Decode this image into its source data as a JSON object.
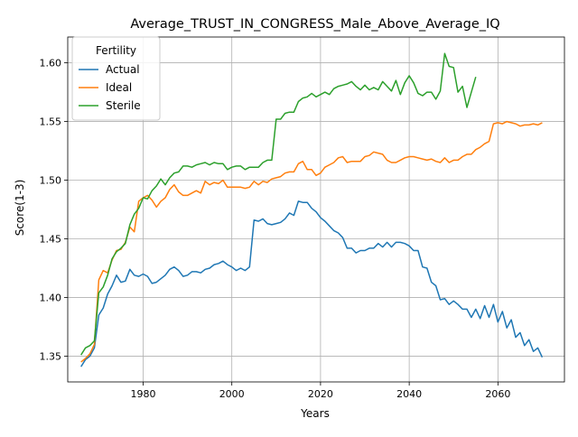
{
  "chart_data": {
    "type": "line",
    "title": "Average_TRUST_IN_CONGRESS_Male_Above_Average_IQ",
    "xlabel": "Years",
    "ylabel": "Score(1-3)",
    "xlim": [
      1963,
      2075
    ],
    "ylim": [
      1.328,
      1.622
    ],
    "xticks": [
      1980,
      2000,
      2020,
      2040,
      2060
    ],
    "yticks": [
      1.35,
      1.4,
      1.45,
      1.5,
      1.55,
      1.6
    ],
    "grid": true,
    "legend": {
      "title": "Fertility",
      "placement": "top-left"
    },
    "series": [
      {
        "name": "Actual",
        "color": "#1f77b4",
        "x": [
          1966,
          1967,
          1968,
          1969,
          1970,
          1971,
          1972,
          1973,
          1974,
          1975,
          1976,
          1977,
          1978,
          1979,
          1980,
          1981,
          1982,
          1983,
          1984,
          1985,
          1986,
          1987,
          1988,
          1989,
          1990,
          1991,
          1992,
          1993,
          1994,
          1995,
          1996,
          1997,
          1998,
          1999,
          2000,
          2001,
          2002,
          2003,
          2004,
          2005,
          2006,
          2007,
          2008,
          2009,
          2010,
          2011,
          2012,
          2013,
          2014,
          2015,
          2016,
          2017,
          2018,
          2019,
          2020,
          2021,
          2022,
          2023,
          2024,
          2025,
          2026,
          2027,
          2028,
          2029,
          2030,
          2031,
          2032,
          2033,
          2034,
          2035,
          2036,
          2037,
          2038,
          2039,
          2040,
          2041,
          2042,
          2043,
          2044,
          2045,
          2046,
          2047,
          2048,
          2049,
          2050,
          2051,
          2052,
          2053,
          2054,
          2055,
          2056,
          2057,
          2058,
          2059,
          2060,
          2061,
          2062,
          2063,
          2064,
          2065,
          2066,
          2067,
          2068,
          2069,
          2070
        ],
        "values": [
          1.341,
          1.347,
          1.35,
          1.357,
          1.385,
          1.391,
          1.403,
          1.41,
          1.419,
          1.413,
          1.414,
          1.424,
          1.419,
          1.418,
          1.42,
          1.418,
          1.412,
          1.413,
          1.416,
          1.419,
          1.424,
          1.426,
          1.423,
          1.418,
          1.419,
          1.422,
          1.422,
          1.421,
          1.424,
          1.425,
          1.428,
          1.429,
          1.431,
          1.428,
          1.426,
          1.423,
          1.425,
          1.423,
          1.426,
          1.466,
          1.465,
          1.467,
          1.463,
          1.462,
          1.463,
          1.464,
          1.467,
          1.472,
          1.47,
          1.482,
          1.481,
          1.481,
          1.476,
          1.473,
          1.468,
          1.465,
          1.461,
          1.457,
          1.455,
          1.451,
          1.442,
          1.442,
          1.438,
          1.44,
          1.44,
          1.442,
          1.442,
          1.446,
          1.443,
          1.447,
          1.443,
          1.447,
          1.447,
          1.446,
          1.444,
          1.44,
          1.44,
          1.426,
          1.425,
          1.413,
          1.41,
          1.398,
          1.399,
          1.394,
          1.397,
          1.394,
          1.39,
          1.39,
          1.383,
          1.39,
          1.382,
          1.393,
          1.383,
          1.394,
          1.379,
          1.388,
          1.374,
          1.381,
          1.366,
          1.37,
          1.359,
          1.364,
          1.354,
          1.357,
          1.349
        ]
      },
      {
        "name": "Ideal",
        "color": "#ff7f0e",
        "x": [
          1966,
          1967,
          1968,
          1969,
          1970,
          1971,
          1972,
          1973,
          1974,
          1975,
          1976,
          1977,
          1978,
          1979,
          1980,
          1981,
          1982,
          1983,
          1984,
          1985,
          1986,
          1987,
          1988,
          1989,
          1990,
          1991,
          1992,
          1993,
          1994,
          1995,
          1996,
          1997,
          1998,
          1999,
          2000,
          2001,
          2002,
          2003,
          2004,
          2005,
          2006,
          2007,
          2008,
          2009,
          2010,
          2011,
          2012,
          2013,
          2014,
          2015,
          2016,
          2017,
          2018,
          2019,
          2020,
          2021,
          2022,
          2023,
          2024,
          2025,
          2026,
          2027,
          2028,
          2029,
          2030,
          2031,
          2032,
          2033,
          2034,
          2035,
          2036,
          2037,
          2038,
          2039,
          2040,
          2041,
          2042,
          2043,
          2044,
          2045,
          2046,
          2047,
          2048,
          2049,
          2050,
          2051,
          2052,
          2053,
          2054,
          2055,
          2056,
          2057,
          2058,
          2059,
          2060,
          2061,
          2062,
          2063,
          2064,
          2065,
          2066,
          2067,
          2068,
          2069,
          2070
        ],
        "values": [
          1.345,
          1.348,
          1.352,
          1.36,
          1.415,
          1.423,
          1.421,
          1.432,
          1.44,
          1.441,
          1.447,
          1.46,
          1.456,
          1.482,
          1.485,
          1.487,
          1.483,
          1.477,
          1.482,
          1.485,
          1.492,
          1.496,
          1.49,
          1.487,
          1.487,
          1.489,
          1.491,
          1.489,
          1.499,
          1.496,
          1.498,
          1.497,
          1.5,
          1.494,
          1.494,
          1.494,
          1.494,
          1.493,
          1.494,
          1.499,
          1.496,
          1.499,
          1.498,
          1.501,
          1.502,
          1.503,
          1.506,
          1.507,
          1.507,
          1.514,
          1.516,
          1.509,
          1.509,
          1.504,
          1.506,
          1.511,
          1.513,
          1.515,
          1.519,
          1.52,
          1.515,
          1.516,
          1.516,
          1.516,
          1.52,
          1.521,
          1.524,
          1.523,
          1.522,
          1.517,
          1.515,
          1.515,
          1.517,
          1.519,
          1.52,
          1.52,
          1.519,
          1.518,
          1.517,
          1.518,
          1.516,
          1.515,
          1.519,
          1.515,
          1.517,
          1.517,
          1.52,
          1.522,
          1.522,
          1.526,
          1.528,
          1.531,
          1.533,
          1.548,
          1.549,
          1.548,
          1.55,
          1.549,
          1.548,
          1.546,
          1.547,
          1.547,
          1.548,
          1.547,
          1.549
        ]
      },
      {
        "name": "Sterile",
        "color": "#2ca02c",
        "x": [
          1966,
          1967,
          1968,
          1969,
          1970,
          1971,
          1972,
          1973,
          1974,
          1975,
          1976,
          1977,
          1978,
          1979,
          1980,
          1981,
          1982,
          1983,
          1984,
          1985,
          1986,
          1987,
          1988,
          1989,
          1990,
          1991,
          1992,
          1993,
          1994,
          1995,
          1996,
          1997,
          1998,
          1999,
          2000,
          2001,
          2002,
          2003,
          2004,
          2005,
          2006,
          2007,
          2008,
          2009,
          2010,
          2011,
          2012,
          2013,
          2014,
          2015,
          2016,
          2017,
          2018,
          2019,
          2020,
          2021,
          2022,
          2023,
          2024,
          2025,
          2026,
          2027,
          2028,
          2029,
          2030,
          2031,
          2032,
          2033,
          2034,
          2035,
          2036,
          2037,
          2038,
          2039,
          2040,
          2041,
          2042,
          2043,
          2044,
          2045,
          2046,
          2047,
          2048,
          2049,
          2050,
          2051,
          2052,
          2053,
          2054,
          2055
        ],
        "values": [
          1.351,
          1.357,
          1.359,
          1.363,
          1.404,
          1.409,
          1.419,
          1.433,
          1.439,
          1.442,
          1.446,
          1.462,
          1.471,
          1.476,
          1.485,
          1.484,
          1.491,
          1.495,
          1.501,
          1.496,
          1.502,
          1.506,
          1.507,
          1.512,
          1.512,
          1.511,
          1.513,
          1.514,
          1.515,
          1.513,
          1.515,
          1.514,
          1.514,
          1.509,
          1.511,
          1.512,
          1.512,
          1.509,
          1.511,
          1.511,
          1.511,
          1.515,
          1.517,
          1.517,
          1.552,
          1.552,
          1.557,
          1.558,
          1.558,
          1.567,
          1.57,
          1.571,
          1.574,
          1.571,
          1.573,
          1.575,
          1.573,
          1.578,
          1.58,
          1.581,
          1.582,
          1.584,
          1.58,
          1.577,
          1.581,
          1.577,
          1.579,
          1.577,
          1.584,
          1.58,
          1.576,
          1.585,
          1.573,
          1.583,
          1.589,
          1.583,
          1.574,
          1.572,
          1.575,
          1.575,
          1.569,
          1.576,
          1.608,
          1.597,
          1.596,
          1.575,
          1.58,
          1.562,
          1.575,
          1.588
        ]
      }
    ]
  }
}
